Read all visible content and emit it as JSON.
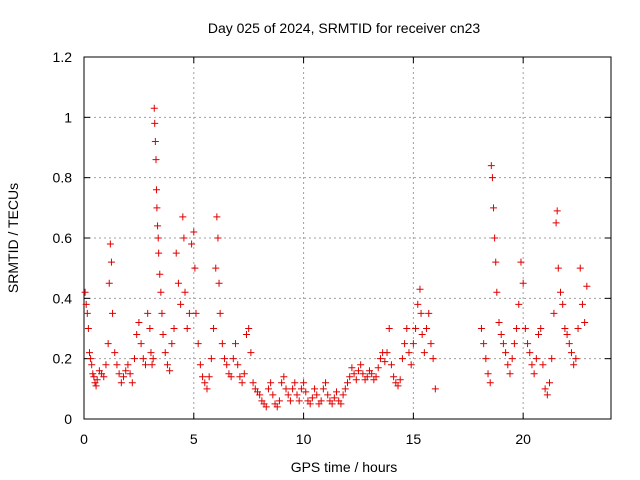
{
  "chart_data": {
    "type": "scatter",
    "title": "Day 025 of 2024, SRMTID for receiver cn23",
    "xlabel": "GPS time / hours",
    "ylabel": "SRMTID / TECUs",
    "xlim": [
      0,
      24
    ],
    "ylim": [
      0,
      1.2
    ],
    "xticks": [
      0,
      5,
      10,
      15,
      20
    ],
    "yticks": [
      0,
      0.2,
      0.4,
      0.6,
      0.8,
      1,
      1.2
    ],
    "grid": true,
    "marker": "+",
    "color": "#e00000",
    "series": [
      {
        "name": "SRMTID",
        "points": [
          [
            0.05,
            0.42
          ],
          [
            0.1,
            0.38
          ],
          [
            0.15,
            0.35
          ],
          [
            0.2,
            0.3
          ],
          [
            0.25,
            0.22
          ],
          [
            0.3,
            0.2
          ],
          [
            0.35,
            0.18
          ],
          [
            0.4,
            0.15
          ],
          [
            0.45,
            0.14
          ],
          [
            0.5,
            0.12
          ],
          [
            0.55,
            0.11
          ],
          [
            0.6,
            0.13
          ],
          [
            0.7,
            0.16
          ],
          [
            0.8,
            0.15
          ],
          [
            0.9,
            0.14
          ],
          [
            1.0,
            0.18
          ],
          [
            1.1,
            0.25
          ],
          [
            1.15,
            0.45
          ],
          [
            1.2,
            0.58
          ],
          [
            1.25,
            0.52
          ],
          [
            1.3,
            0.35
          ],
          [
            1.4,
            0.22
          ],
          [
            1.5,
            0.18
          ],
          [
            1.6,
            0.15
          ],
          [
            1.7,
            0.12
          ],
          [
            1.8,
            0.14
          ],
          [
            1.9,
            0.16
          ],
          [
            2.0,
            0.18
          ],
          [
            2.1,
            0.15
          ],
          [
            2.2,
            0.12
          ],
          [
            2.3,
            0.2
          ],
          [
            2.4,
            0.28
          ],
          [
            2.5,
            0.32
          ],
          [
            2.6,
            0.25
          ],
          [
            2.7,
            0.2
          ],
          [
            2.8,
            0.18
          ],
          [
            2.9,
            0.35
          ],
          [
            3.0,
            0.3
          ],
          [
            3.05,
            0.22
          ],
          [
            3.1,
            0.18
          ],
          [
            3.15,
            0.2
          ],
          [
            3.2,
            1.03
          ],
          [
            3.22,
            0.98
          ],
          [
            3.25,
            0.92
          ],
          [
            3.28,
            0.86
          ],
          [
            3.3,
            0.76
          ],
          [
            3.32,
            0.7
          ],
          [
            3.35,
            0.64
          ],
          [
            3.38,
            0.6
          ],
          [
            3.4,
            0.55
          ],
          [
            3.45,
            0.48
          ],
          [
            3.5,
            0.42
          ],
          [
            3.55,
            0.35
          ],
          [
            3.6,
            0.28
          ],
          [
            3.7,
            0.22
          ],
          [
            3.8,
            0.18
          ],
          [
            3.9,
            0.16
          ],
          [
            4.0,
            0.25
          ],
          [
            4.1,
            0.3
          ],
          [
            4.2,
            0.55
          ],
          [
            4.3,
            0.45
          ],
          [
            4.4,
            0.38
          ],
          [
            4.5,
            0.67
          ],
          [
            4.55,
            0.6
          ],
          [
            4.6,
            0.42
          ],
          [
            4.7,
            0.3
          ],
          [
            4.8,
            0.35
          ],
          [
            4.9,
            0.58
          ],
          [
            5.0,
            0.62
          ],
          [
            5.05,
            0.5
          ],
          [
            5.1,
            0.35
          ],
          [
            5.2,
            0.25
          ],
          [
            5.3,
            0.18
          ],
          [
            5.4,
            0.14
          ],
          [
            5.5,
            0.12
          ],
          [
            5.6,
            0.1
          ],
          [
            5.7,
            0.14
          ],
          [
            5.8,
            0.2
          ],
          [
            5.9,
            0.3
          ],
          [
            6.0,
            0.5
          ],
          [
            6.05,
            0.67
          ],
          [
            6.1,
            0.6
          ],
          [
            6.15,
            0.45
          ],
          [
            6.2,
            0.35
          ],
          [
            6.3,
            0.25
          ],
          [
            6.4,
            0.2
          ],
          [
            6.5,
            0.18
          ],
          [
            6.6,
            0.15
          ],
          [
            6.7,
            0.14
          ],
          [
            6.8,
            0.2
          ],
          [
            6.9,
            0.25
          ],
          [
            7.0,
            0.18
          ],
          [
            7.1,
            0.14
          ],
          [
            7.2,
            0.12
          ],
          [
            7.3,
            0.15
          ],
          [
            7.4,
            0.28
          ],
          [
            7.5,
            0.3
          ],
          [
            7.6,
            0.22
          ],
          [
            7.7,
            0.12
          ],
          [
            7.8,
            0.1
          ],
          [
            7.9,
            0.09
          ],
          [
            8.0,
            0.08
          ],
          [
            8.1,
            0.06
          ],
          [
            8.2,
            0.05
          ],
          [
            8.3,
            0.04
          ],
          [
            8.4,
            0.1
          ],
          [
            8.5,
            0.12
          ],
          [
            8.6,
            0.08
          ],
          [
            8.7,
            0.05
          ],
          [
            8.8,
            0.04
          ],
          [
            8.9,
            0.06
          ],
          [
            9.0,
            0.12
          ],
          [
            9.1,
            0.14
          ],
          [
            9.2,
            0.1
          ],
          [
            9.3,
            0.08
          ],
          [
            9.4,
            0.06
          ],
          [
            9.5,
            0.1
          ],
          [
            9.6,
            0.12
          ],
          [
            9.7,
            0.08
          ],
          [
            9.8,
            0.06
          ],
          [
            9.9,
            0.1
          ],
          [
            10.0,
            0.12
          ],
          [
            10.1,
            0.09
          ],
          [
            10.2,
            0.06
          ],
          [
            10.3,
            0.05
          ],
          [
            10.4,
            0.07
          ],
          [
            10.5,
            0.1
          ],
          [
            10.6,
            0.08
          ],
          [
            10.7,
            0.05
          ],
          [
            10.8,
            0.06
          ],
          [
            10.9,
            0.1
          ],
          [
            11.0,
            0.12
          ],
          [
            11.1,
            0.08
          ],
          [
            11.2,
            0.06
          ],
          [
            11.3,
            0.05
          ],
          [
            11.4,
            0.07
          ],
          [
            11.5,
            0.09
          ],
          [
            11.6,
            0.06
          ],
          [
            11.7,
            0.05
          ],
          [
            11.8,
            0.08
          ],
          [
            11.9,
            0.1
          ],
          [
            12.0,
            0.12
          ],
          [
            12.1,
            0.14
          ],
          [
            12.2,
            0.17
          ],
          [
            12.3,
            0.15
          ],
          [
            12.4,
            0.13
          ],
          [
            12.5,
            0.16
          ],
          [
            12.6,
            0.18
          ],
          [
            12.7,
            0.15
          ],
          [
            12.8,
            0.13
          ],
          [
            12.9,
            0.14
          ],
          [
            13.0,
            0.16
          ],
          [
            13.1,
            0.15
          ],
          [
            13.2,
            0.13
          ],
          [
            13.3,
            0.14
          ],
          [
            13.4,
            0.17
          ],
          [
            13.5,
            0.2
          ],
          [
            13.6,
            0.22
          ],
          [
            13.7,
            0.19
          ],
          [
            13.8,
            0.22
          ],
          [
            13.9,
            0.3
          ],
          [
            14.0,
            0.18
          ],
          [
            14.1,
            0.14
          ],
          [
            14.2,
            0.12
          ],
          [
            14.3,
            0.11
          ],
          [
            14.4,
            0.13
          ],
          [
            14.5,
            0.2
          ],
          [
            14.6,
            0.25
          ],
          [
            14.7,
            0.3
          ],
          [
            14.8,
            0.22
          ],
          [
            14.9,
            0.18
          ],
          [
            15.0,
            0.25
          ],
          [
            15.1,
            0.3
          ],
          [
            15.2,
            0.38
          ],
          [
            15.3,
            0.43
          ],
          [
            15.35,
            0.35
          ],
          [
            15.4,
            0.28
          ],
          [
            15.5,
            0.22
          ],
          [
            15.6,
            0.3
          ],
          [
            15.7,
            0.35
          ],
          [
            15.8,
            0.25
          ],
          [
            15.9,
            0.2
          ],
          [
            16.0,
            0.1
          ],
          [
            18.1,
            0.3
          ],
          [
            18.2,
            0.25
          ],
          [
            18.3,
            0.2
          ],
          [
            18.4,
            0.15
          ],
          [
            18.5,
            0.12
          ],
          [
            18.55,
            0.84
          ],
          [
            18.6,
            0.8
          ],
          [
            18.65,
            0.7
          ],
          [
            18.7,
            0.6
          ],
          [
            18.75,
            0.52
          ],
          [
            18.8,
            0.42
          ],
          [
            18.9,
            0.32
          ],
          [
            19.0,
            0.28
          ],
          [
            19.1,
            0.25
          ],
          [
            19.2,
            0.22
          ],
          [
            19.3,
            0.18
          ],
          [
            19.4,
            0.15
          ],
          [
            19.5,
            0.2
          ],
          [
            19.6,
            0.25
          ],
          [
            19.7,
            0.3
          ],
          [
            19.8,
            0.38
          ],
          [
            19.9,
            0.52
          ],
          [
            20.0,
            0.45
          ],
          [
            20.1,
            0.3
          ],
          [
            20.2,
            0.25
          ],
          [
            20.3,
            0.22
          ],
          [
            20.4,
            0.18
          ],
          [
            20.5,
            0.15
          ],
          [
            20.6,
            0.2
          ],
          [
            20.7,
            0.28
          ],
          [
            20.8,
            0.3
          ],
          [
            20.9,
            0.18
          ],
          [
            21.0,
            0.1
          ],
          [
            21.1,
            0.08
          ],
          [
            21.2,
            0.12
          ],
          [
            21.3,
            0.2
          ],
          [
            21.4,
            0.35
          ],
          [
            21.5,
            0.65
          ],
          [
            21.55,
            0.69
          ],
          [
            21.6,
            0.5
          ],
          [
            21.7,
            0.42
          ],
          [
            21.8,
            0.38
          ],
          [
            21.9,
            0.3
          ],
          [
            22.0,
            0.28
          ],
          [
            22.1,
            0.25
          ],
          [
            22.2,
            0.22
          ],
          [
            22.3,
            0.18
          ],
          [
            22.4,
            0.2
          ],
          [
            22.5,
            0.3
          ],
          [
            22.6,
            0.5
          ],
          [
            22.7,
            0.38
          ],
          [
            22.8,
            0.32
          ],
          [
            22.9,
            0.44
          ]
        ]
      }
    ]
  }
}
